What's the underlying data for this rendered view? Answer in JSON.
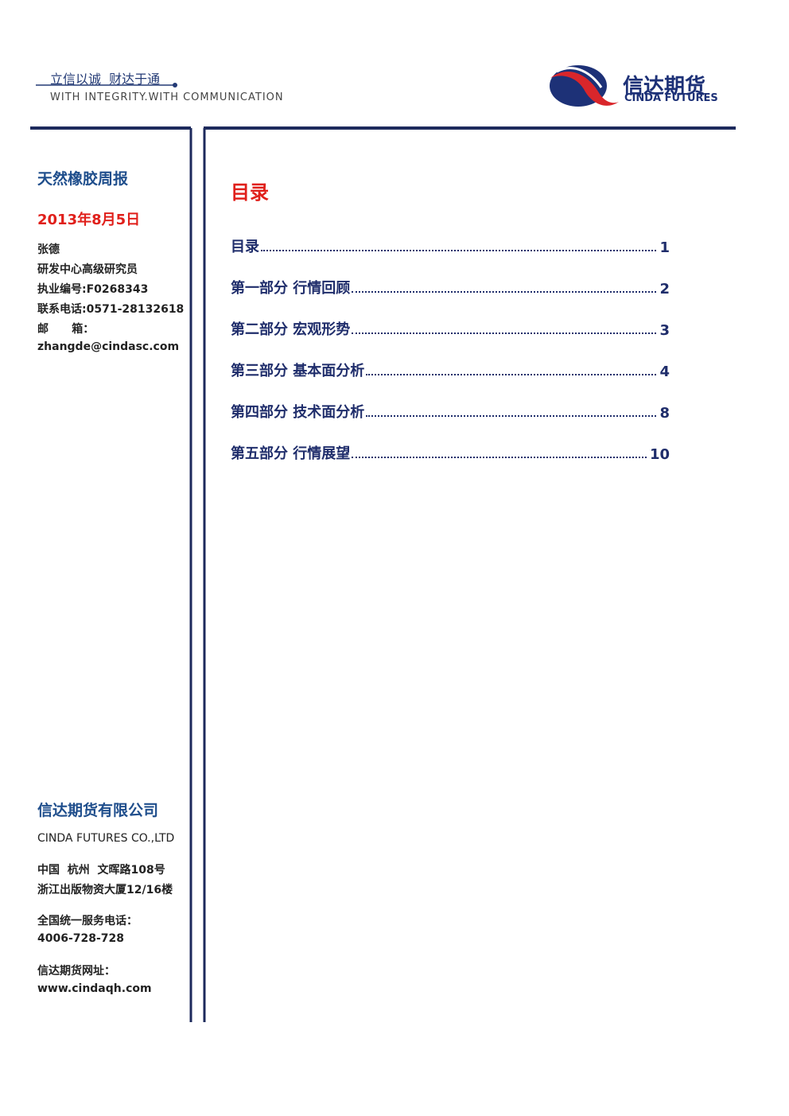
{
  "header": {
    "slogan": "立信以诚  财达于通",
    "slogan_en": "WITH INTEGRITY.WITH COMMUNICATION",
    "logo_name": "信达期货",
    "logo_en": "CINDA FUTURES"
  },
  "sidebar": {
    "report_title": "天然橡胶周报",
    "date": "2013年8月5日",
    "author": [
      "张德",
      "研发中心高级研究员",
      "执业编号:F0268343",
      "联系电话:0571-28132618",
      "邮      箱：",
      "zhangde@cindasc.com"
    ],
    "company": "信达期货有限公司",
    "company_en": "CINDA FUTURES CO.,LTD",
    "address": [
      "中国  杭州  文晖路108号",
      "浙江出版物资大厦12/16楼"
    ],
    "service": [
      "全国统一服务电话：",
      "4006-728-728"
    ],
    "website": [
      "信达期货网址：",
      "www.cindaqh.com"
    ]
  },
  "toc": {
    "heading": "目录",
    "entries": [
      {
        "title": "目录",
        "page": "1"
      },
      {
        "title": "第一部分  行情回顾",
        "page": "2"
      },
      {
        "title": "第二部分  宏观形势",
        "page": "3"
      },
      {
        "title": "第三部分  基本面分析",
        "page": "4"
      },
      {
        "title": "第四部分  技术面分析",
        "page": "8"
      },
      {
        "title": "第五部分  行情展望",
        "page": "10"
      }
    ]
  }
}
